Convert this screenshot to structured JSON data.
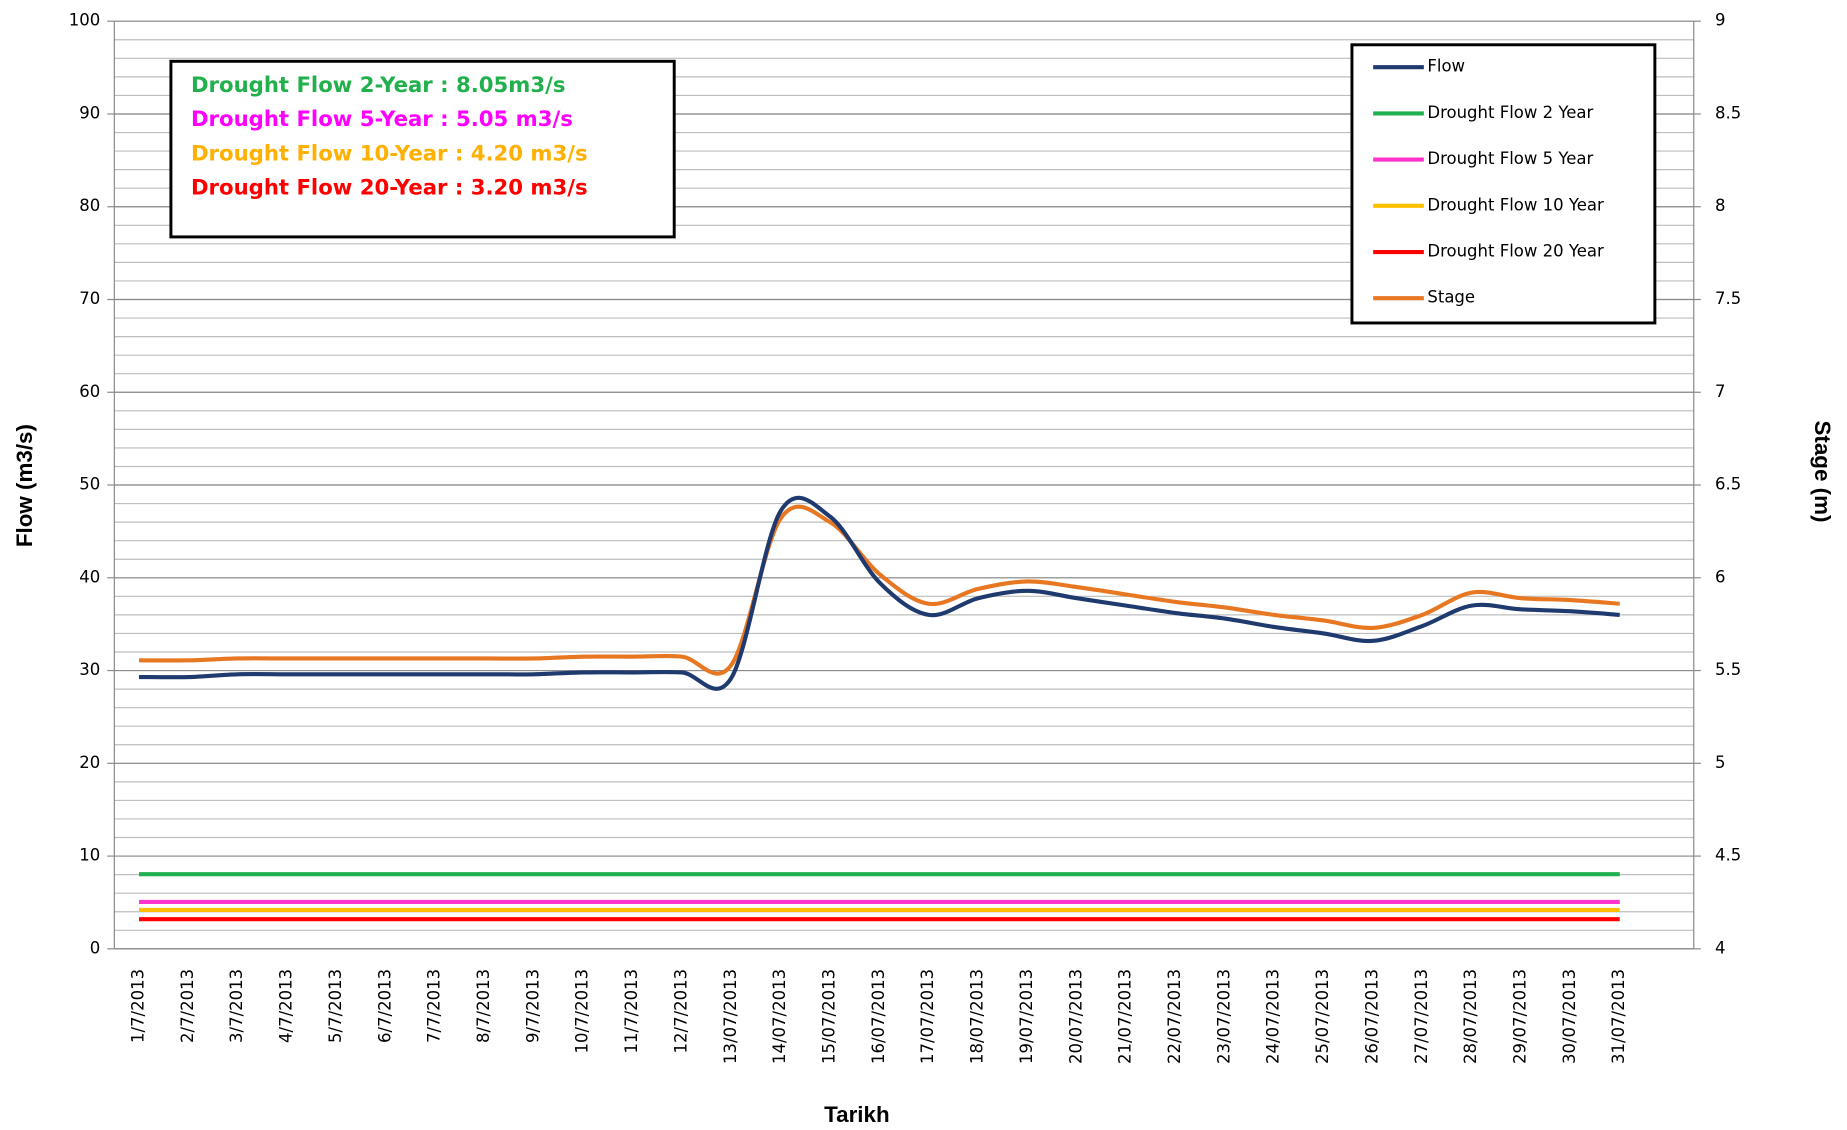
{
  "chart_data": {
    "type": "line",
    "x_label": "Tarikh",
    "y_label": "Flow (m3/s)",
    "y2_label": "Stage (m)",
    "categories": [
      "1/7/2013",
      "2/7/2013",
      "3/7/2013",
      "4/7/2013",
      "5/7/2013",
      "6/7/2013",
      "7/7/2013",
      "8/7/2013",
      "9/7/2013",
      "10/7/2013",
      "11/7/2013",
      "12/7/2013",
      "13/07/2013",
      "14/07/2013",
      "15/07/2013",
      "16/07/2013",
      "17/07/2013",
      "18/07/2013",
      "19/07/2013",
      "20/07/2013",
      "21/07/2013",
      "22/07/2013",
      "23/07/2013",
      "24/07/2013",
      "25/07/2013",
      "26/07/2013",
      "27/07/2013",
      "28/07/2013",
      "29/07/2013",
      "30/07/2013",
      "31/07/2013"
    ],
    "series": [
      {
        "name": "Flow",
        "color": "#1f3a6e",
        "values": [
          29.3,
          29.3,
          29.6,
          29.6,
          29.6,
          29.6,
          29.6,
          29.6,
          29.6,
          29.8,
          29.8,
          29.8,
          29.2,
          47.2,
          46.6,
          39.5,
          36,
          37.8,
          38.6,
          37.8,
          37,
          36.2,
          35.6,
          34.7,
          34,
          33.2,
          34.8,
          37,
          36.6,
          36.4,
          36
        ]
      },
      {
        "name": "Drought Flow 2 Year",
        "color": "#1fb050",
        "values": [
          8.05,
          8.05,
          8.05,
          8.05,
          8.05,
          8.05,
          8.05,
          8.05,
          8.05,
          8.05,
          8.05,
          8.05,
          8.05,
          8.05,
          8.05,
          8.05,
          8.05,
          8.05,
          8.05,
          8.05,
          8.05,
          8.05,
          8.05,
          8.05,
          8.05,
          8.05,
          8.05,
          8.05,
          8.05,
          8.05,
          8.05
        ]
      },
      {
        "name": "Drought Flow 5 Year",
        "color": "#ff33cc",
        "values": [
          5.05,
          5.05,
          5.05,
          5.05,
          5.05,
          5.05,
          5.05,
          5.05,
          5.05,
          5.05,
          5.05,
          5.05,
          5.05,
          5.05,
          5.05,
          5.05,
          5.05,
          5.05,
          5.05,
          5.05,
          5.05,
          5.05,
          5.05,
          5.05,
          5.05,
          5.05,
          5.05,
          5.05,
          5.05,
          5.05,
          5.05
        ]
      },
      {
        "name": "Drought Flow 10 Year",
        "color": "#ffc000",
        "values": [
          4.2,
          4.2,
          4.2,
          4.2,
          4.2,
          4.2,
          4.2,
          4.2,
          4.2,
          4.2,
          4.2,
          4.2,
          4.2,
          4.2,
          4.2,
          4.2,
          4.2,
          4.2,
          4.2,
          4.2,
          4.2,
          4.2,
          4.2,
          4.2,
          4.2,
          4.2,
          4.2,
          4.2,
          4.2,
          4.2,
          4.2
        ]
      },
      {
        "name": "Drought Flow 20 Year",
        "color": "#ff0000",
        "values": [
          3.2,
          3.2,
          3.2,
          3.2,
          3.2,
          3.2,
          3.2,
          3.2,
          3.2,
          3.2,
          3.2,
          3.2,
          3.2,
          3.2,
          3.2,
          3.2,
          3.2,
          3.2,
          3.2,
          3.2,
          3.2,
          3.2,
          3.2,
          3.2,
          3.2,
          3.2,
          3.2,
          3.2,
          3.2,
          3.2,
          3.2
        ]
      },
      {
        "name": "Stage",
        "color": "#e87722",
        "axis": "y2",
        "values": [
          5.555,
          5.555,
          5.565,
          5.565,
          5.565,
          5.565,
          5.565,
          5.565,
          5.565,
          5.575,
          5.575,
          5.575,
          5.53,
          6.32,
          6.3,
          6.02,
          5.86,
          5.94,
          5.98,
          5.95,
          5.91,
          5.87,
          5.84,
          5.8,
          5.77,
          5.73,
          5.8,
          5.92,
          5.89,
          5.88,
          5.86
        ]
      }
    ],
    "ylim": [
      0,
      100
    ],
    "yticks": [
      0,
      10,
      20,
      30,
      40,
      50,
      60,
      70,
      80,
      90,
      100
    ],
    "y2lim": [
      4,
      9
    ],
    "y2ticks": [
      4,
      4.5,
      5,
      5.5,
      6,
      6.5,
      7,
      7.5,
      8,
      8.5,
      9
    ],
    "grid": true,
    "grid_minor_step": 2,
    "legend": "top-right",
    "annotations": [
      {
        "text": "Drought Flow 2-Year : 8.05m3/s",
        "color": "#22b04c"
      },
      {
        "text": "Drought Flow 5-Year :  5.05 m3/s",
        "color": "#ff00ff"
      },
      {
        "text": "Drought Flow 10-Year : 4.20 m3/s",
        "color": "#ffb000"
      },
      {
        "text": "Drought Flow 20-Year : 3.20 m3/s",
        "color": "#ff0000"
      }
    ]
  }
}
